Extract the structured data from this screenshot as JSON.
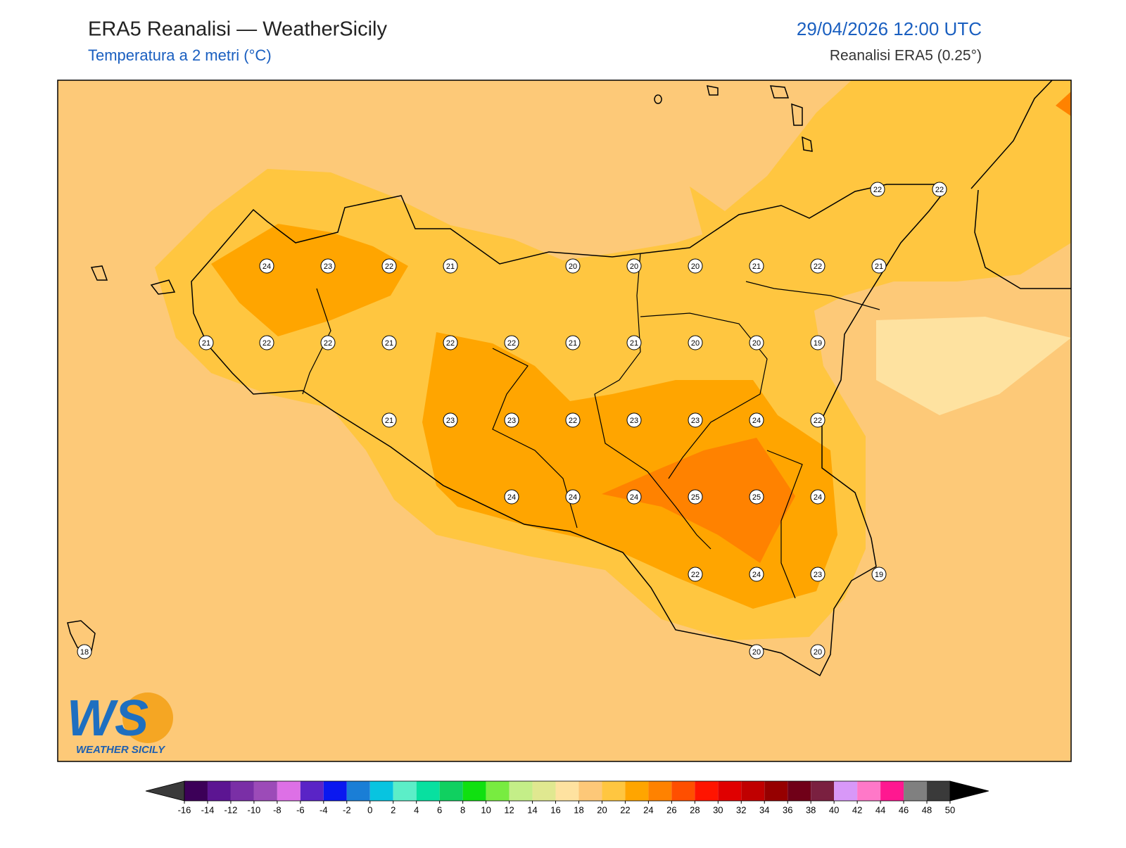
{
  "header": {
    "title": "ERA5 Reanalisi — WeatherSicily",
    "subtitle": "Temperatura a 2 metri (°C)",
    "datetime": "29/04/2026 12:00 UTC",
    "source": "Reanalisi ERA5 (0.25°)"
  },
  "map": {
    "values": [
      22,
      22,
      24,
      23,
      22,
      21,
      20,
      20,
      20,
      21,
      22,
      21,
      21,
      22,
      22,
      21,
      22,
      22,
      21,
      21,
      20,
      20,
      19,
      21,
      23,
      23,
      22,
      23,
      23,
      24,
      22,
      24,
      24,
      24,
      25,
      25,
      24,
      22,
      24,
      23,
      19,
      18,
      20,
      20
    ]
  },
  "colorbar": {
    "ticks": [
      -16,
      -14,
      -12,
      -10,
      -8,
      -6,
      -4,
      -2,
      0,
      2,
      4,
      6,
      8,
      10,
      12,
      14,
      16,
      18,
      20,
      22,
      24,
      26,
      28,
      30,
      32,
      34,
      36,
      38,
      40,
      42,
      44,
      46,
      48,
      50
    ],
    "colors": [
      "#3c0058",
      "#5c1592",
      "#7a2fa6",
      "#9c4bb8",
      "#dd70e6",
      "#5a24c6",
      "#0a18f0",
      "#1a7ed6",
      "#08c4e0",
      "#5ceec8",
      "#08e0a0",
      "#10d060",
      "#10e010",
      "#78ec40",
      "#c4ee88",
      "#e0e890",
      "#fee2a0",
      "#fdc878",
      "#ffc640",
      "#ffa500",
      "#ff8200",
      "#ff4f00",
      "#ff1400",
      "#e00000",
      "#c00000",
      "#960000",
      "#700018",
      "#7a2040",
      "#d898f8",
      "#ff78c8",
      "#ff1890",
      "#808080",
      "#3a3a3a"
    ],
    "under_color": "#3a3a3a",
    "over_color": "#000000"
  },
  "logo": {
    "initials": "WS",
    "name": "WEATHER SICILY"
  }
}
